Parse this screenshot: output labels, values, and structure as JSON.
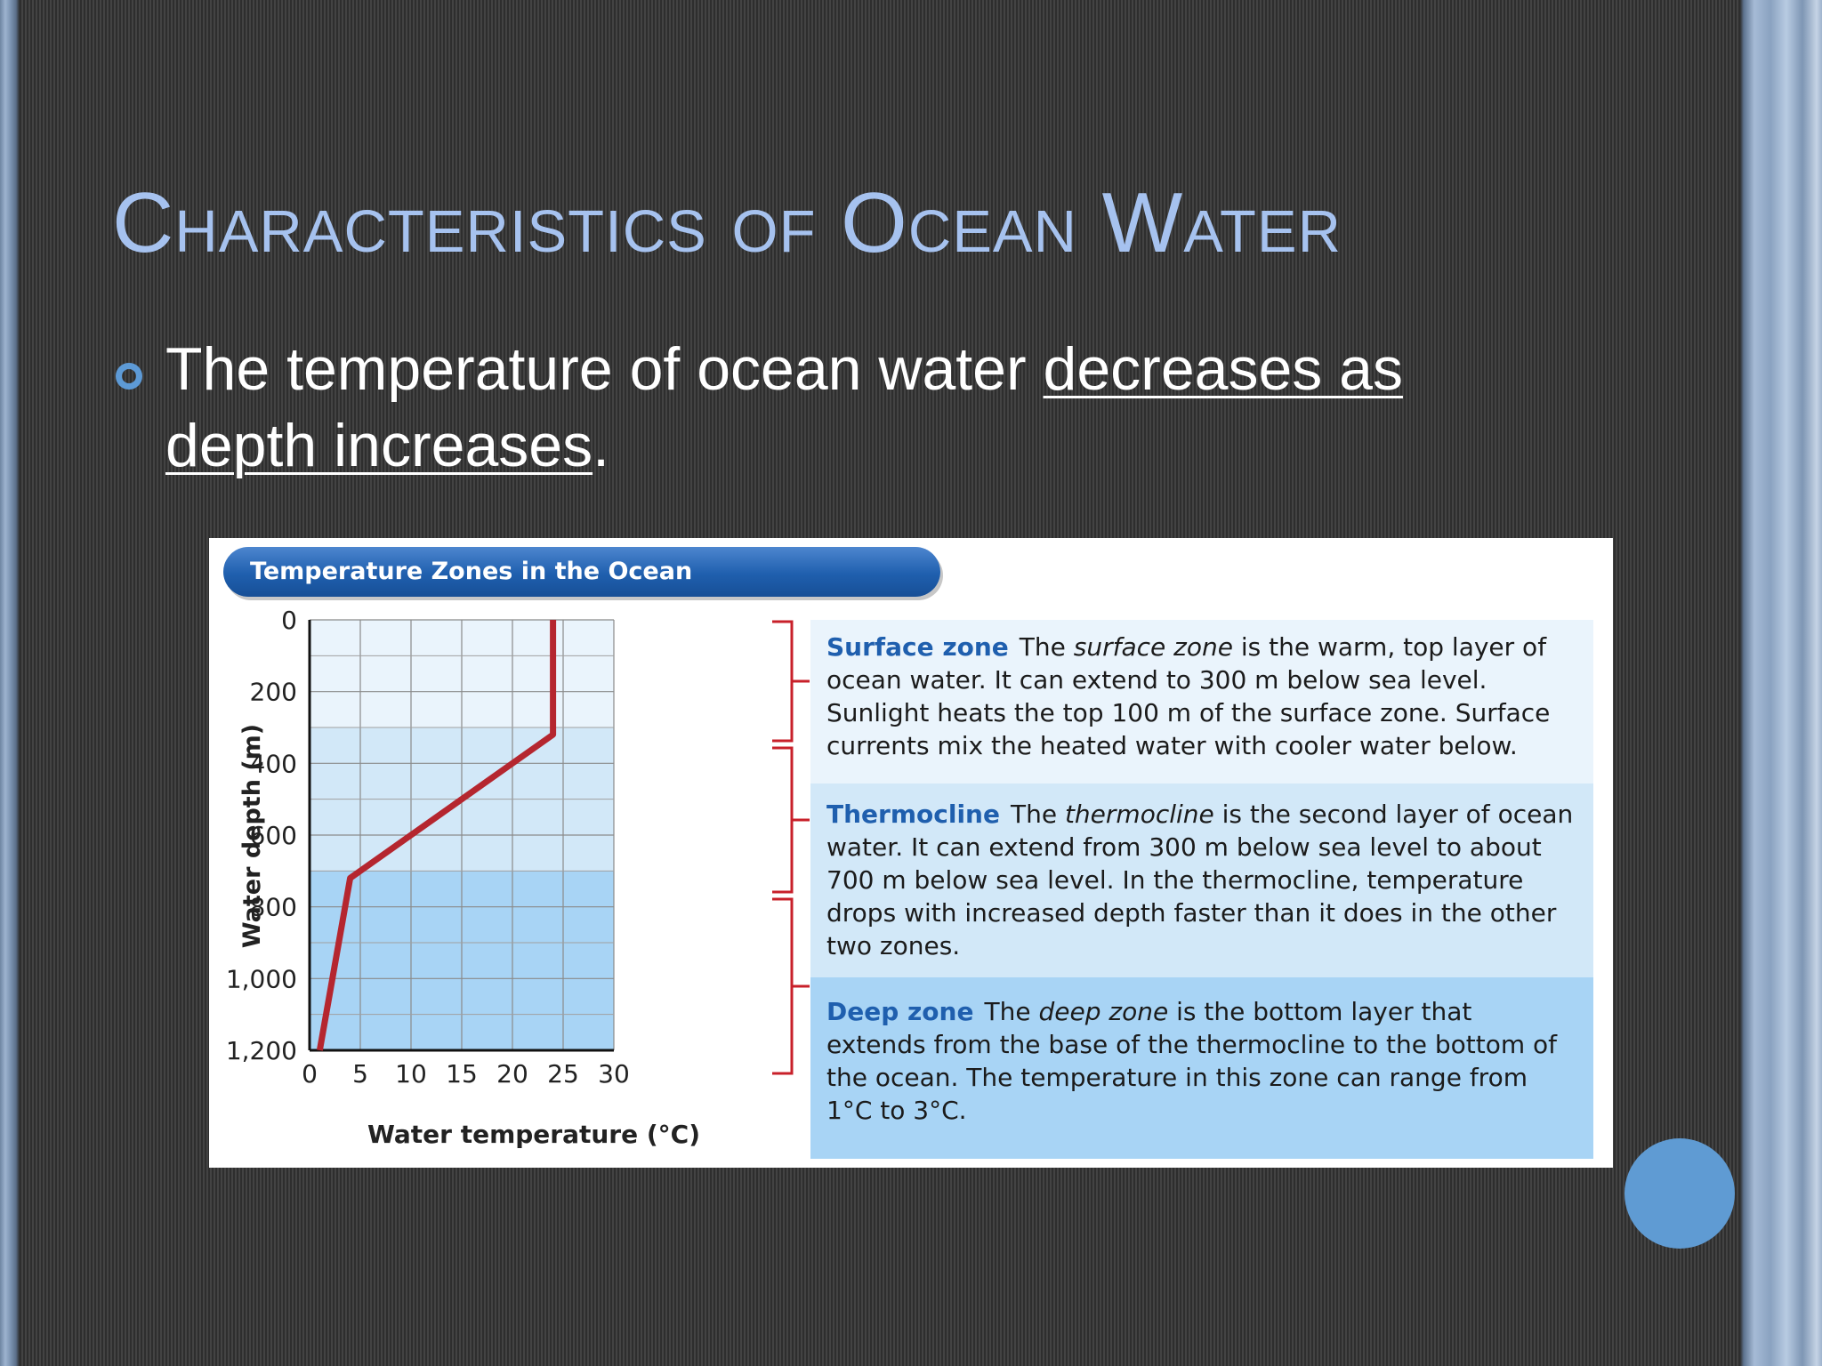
{
  "slide": {
    "title": "Characteristics of Ocean Water",
    "bullet": {
      "text_plain": "The temperature of ocean water ",
      "text_underlined": "decreases as depth increases",
      "text_end": "."
    }
  },
  "figure": {
    "banner": "Temperature Zones in the Ocean",
    "zones": [
      {
        "name": "Surface zone",
        "pre": "The ",
        "italic": "surface zone",
        "post": " is the warm, top layer of ocean water. It can extend to 300 m below sea level. Sunlight heats the top 100 m of the surface zone. Surface currents mix the heated water with cooler water below."
      },
      {
        "name": "Thermocline",
        "pre": "The ",
        "italic": "thermocline",
        "post": " is the second layer of ocean water. It can extend from 300 m below sea level to about 700 m below sea level. In the thermocline, temperature drops with increased depth faster than it does in the other two zones."
      },
      {
        "name": "Deep zone",
        "pre": "The ",
        "italic": "deep zone",
        "post": " is the bottom layer that extends from the base of the thermocline to the bottom of the ocean. The temperature in this zone can range from 1°C to 3°C."
      }
    ]
  },
  "chart_data": {
    "type": "line",
    "title": "Temperature Zones in the Ocean",
    "xlabel": "Water temperature (°C)",
    "ylabel": "Water depth (m)",
    "xlim": [
      0,
      30
    ],
    "ylim": [
      1200,
      0
    ],
    "y_inverted": true,
    "x_ticks": [
      "0",
      "5",
      "10",
      "15",
      "20",
      "25",
      "30"
    ],
    "y_ticks": [
      "0",
      "200",
      "400",
      "600",
      "800",
      "1,000",
      "1,200"
    ],
    "x_tick_values": [
      0,
      5,
      10,
      15,
      20,
      25,
      30
    ],
    "y_tick_values": [
      0,
      200,
      400,
      600,
      800,
      1000,
      1200
    ],
    "grid": true,
    "series": [
      {
        "x": [
          24,
          24,
          4,
          1
        ],
        "y": [
          0,
          320,
          720,
          1200
        ],
        "color": "#b5262f"
      }
    ],
    "zone_bands": [
      {
        "from": 0,
        "to": 300,
        "color": "#eaf4fc"
      },
      {
        "from": 300,
        "to": 700,
        "color": "#d2e8f8"
      },
      {
        "from": 700,
        "to": 1200,
        "color": "#a8d4f5"
      }
    ],
    "bracket_color": "#c8202a"
  }
}
